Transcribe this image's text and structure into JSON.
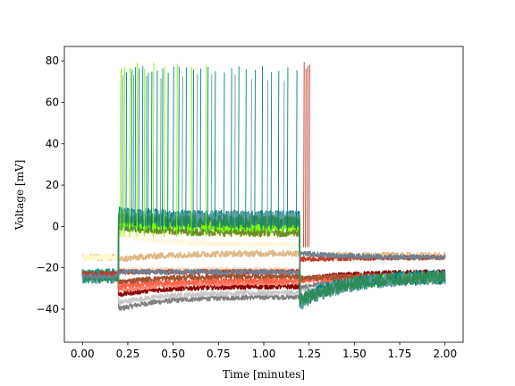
{
  "chart_data": {
    "type": "line",
    "title": "",
    "xlabel": "Time [minutes]",
    "ylabel": "Voltage [mV]",
    "xlim": [
      -0.1,
      2.1
    ],
    "ylim": [
      -56,
      87
    ],
    "x_ticks": [
      0.0,
      0.25,
      0.5,
      0.75,
      1.0,
      1.25,
      1.5,
      1.75,
      2.0
    ],
    "x_tick_labels": [
      "0.00",
      "0.25",
      "0.50",
      "0.75",
      "1.00",
      "1.25",
      "1.50",
      "1.75",
      "2.00"
    ],
    "y_ticks": [
      -40,
      -20,
      0,
      20,
      40,
      60,
      80
    ],
    "y_tick_labels": [
      "−40",
      "−20",
      "0",
      "20",
      "40",
      "60",
      "80"
    ],
    "grid": false,
    "legend": "none",
    "stimulus_window": [
      0.2,
      1.2
    ],
    "series": [
      {
        "color": "#808080",
        "baseline": -24,
        "step": [
          0.21,
          -40
        ],
        "step_end": -34,
        "post": [
          -30,
          -24
        ],
        "noise": 1.2
      },
      {
        "color": "#c8c8c8",
        "baseline": -24,
        "step": [
          0.21,
          -37
        ],
        "step_end": -32,
        "post": [
          -32,
          -24
        ],
        "noise": 1.2
      },
      {
        "color": "#8b0000",
        "baseline": -23,
        "step": [
          0.21,
          -33
        ],
        "step_end": -29,
        "post": [
          -26,
          -22
        ],
        "noise": 1.2
      },
      {
        "color": "#fa8072",
        "baseline": -24,
        "step": [
          0.21,
          -31
        ],
        "step_end": -27,
        "post": [
          -26,
          -24
        ],
        "noise": 1.4
      },
      {
        "color": "#ff6347",
        "baseline": -24,
        "step": [
          0.21,
          -29
        ],
        "step_end": -26,
        "post": [
          -26,
          -24
        ],
        "noise": 1.4
      },
      {
        "color": "#a0522d",
        "baseline": -24,
        "step": [
          0.21,
          -27
        ],
        "step_end": -24,
        "post": [
          -25,
          -24
        ],
        "noise": 1.2
      },
      {
        "color": "#ffdab9",
        "baseline": -15,
        "step": [
          0.21,
          -21
        ],
        "step_end": -21,
        "post": [
          -16,
          -15
        ],
        "noise": 1.2
      },
      {
        "color": "#deb887",
        "baseline": -15,
        "step": [
          0.21,
          -16
        ],
        "step_end": -13,
        "post": [
          -14,
          -14
        ],
        "noise": 1.5
      },
      {
        "color": "#fff8dc",
        "baseline": -15,
        "step": [
          0.21,
          -4
        ],
        "step_end": -9,
        "post": [
          -14,
          -15
        ],
        "noise": 1.3
      },
      {
        "color": "#fffacd",
        "baseline": -15,
        "step": [
          0.21,
          -2
        ],
        "step_end": -4,
        "post": [
          -15,
          -15
        ],
        "noise": 1.3
      },
      {
        "color": "#808000",
        "baseline": -24,
        "step": [
          0.21,
          2
        ],
        "step_end": 1,
        "post": [
          -36,
          -24
        ],
        "noise": 2
      },
      {
        "color": "#6b8e23",
        "baseline": -24,
        "step": [
          0.21,
          0
        ],
        "step_end": -3,
        "post": [
          -36,
          -24
        ],
        "noise": 2
      },
      {
        "color": "#7cfc00",
        "baseline": -24,
        "step": [
          0.21,
          2
        ],
        "step_end": 0,
        "post": [
          -36,
          -24
        ],
        "noise": 2.5
      },
      {
        "color": "#008080",
        "baseline": -24,
        "step": [
          0.21,
          6
        ],
        "step_end": 4,
        "post": [
          -36,
          -24
        ],
        "noise": 3.5
      },
      {
        "color": "#5f9ea0",
        "baseline": -24,
        "step": [
          0.21,
          5
        ],
        "step_end": 4,
        "post": [
          -37,
          -24
        ],
        "noise": 3.5
      },
      {
        "color": "#2e8b57",
        "baseline": -24,
        "step": [
          0.21,
          4
        ],
        "step_end": 2,
        "post": [
          -36,
          -24
        ],
        "noise": 3
      },
      {
        "color": "#c0392b",
        "baseline": -23,
        "step": [
          0.21,
          -22
        ],
        "step_end": -22,
        "post": [
          -16,
          -15
        ],
        "noise": 1.2
      },
      {
        "color": "#708090",
        "baseline": -24,
        "step": [
          0.21,
          -22
        ],
        "step_end": -22,
        "post": [
          -13,
          -15
        ],
        "noise": 1.2
      }
    ],
    "spike_trains": [
      {
        "color": "#008080",
        "peak": 78,
        "trough": -2,
        "times": [
          0.21,
          0.24,
          0.27,
          0.29,
          0.31,
          0.33,
          0.36,
          0.38,
          0.41,
          0.44,
          0.47,
          0.5,
          0.53,
          0.57,
          0.61,
          0.65,
          0.69,
          0.73,
          0.78,
          0.82,
          0.86,
          0.9,
          0.95,
          0.99,
          1.04,
          1.08,
          1.13,
          1.18
        ]
      },
      {
        "color": "#7cfc00",
        "peak": 80,
        "trough": -5,
        "times": [
          0.21,
          0.23,
          0.26,
          0.3,
          0.34,
          0.39,
          0.45,
          0.52,
          0.6,
          0.68
        ]
      },
      {
        "color": "#5f9ea0",
        "peak": 74,
        "trough": -2,
        "times": [
          0.22,
          0.28,
          0.35,
          0.43,
          0.55,
          0.63,
          0.71,
          0.84,
          0.93,
          1.02,
          1.11
        ]
      },
      {
        "color": "#c0392b",
        "peak": 80,
        "trough": -10,
        "times": [
          1.22,
          1.23,
          1.24,
          1.25
        ]
      }
    ]
  }
}
